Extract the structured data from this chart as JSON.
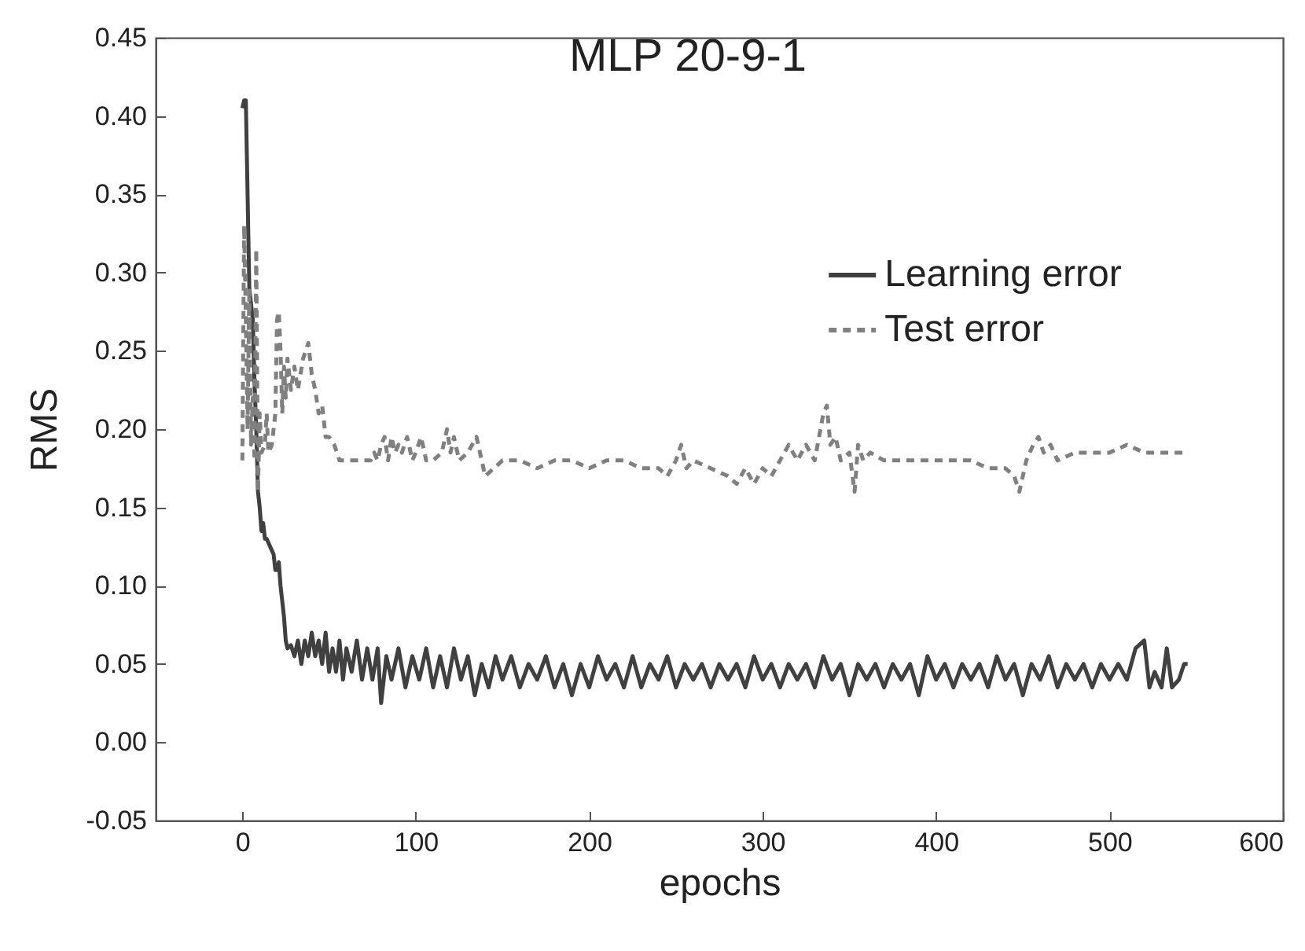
{
  "chart_data": {
    "type": "line",
    "title": "MLP 20-9-1",
    "xlabel": "epochs",
    "ylabel": "RMS",
    "xlim": [
      -50,
      600
    ],
    "xticks": [
      0,
      100,
      200,
      300,
      400,
      500,
      600
    ],
    "ylim": [
      -0.05,
      0.45
    ],
    "yticks": [
      {
        "value": -0.05,
        "label": "-0.05"
      },
      {
        "value": 0,
        "label": "0.00"
      },
      {
        "value": 0.05,
        "label": "0.05"
      },
      {
        "value": 0.1,
        "label": "0.10"
      },
      {
        "value": 0.15,
        "label": "0.15"
      },
      {
        "value": 0.2,
        "label": "0.20"
      },
      {
        "value": 0.25,
        "label": "0.25"
      },
      {
        "value": 0.3,
        "label": "0.30"
      },
      {
        "value": 0.35,
        "label": "0.35"
      },
      {
        "value": 0.4,
        "label": "0.40"
      },
      {
        "value": 0.45,
        "label": "0.45"
      }
    ],
    "grid": false,
    "legend": "top right",
    "marker": "none",
    "series": [
      {
        "name": "Learning error",
        "color": "#404040",
        "line_style": "solid",
        "x": [
          0,
          1,
          2,
          3,
          4,
          5,
          6,
          7,
          8,
          9,
          10,
          11,
          12,
          13,
          14,
          16,
          18,
          19,
          20,
          21,
          22,
          23,
          24,
          25,
          26,
          28,
          30,
          32,
          34,
          36,
          38,
          40,
          42,
          44,
          46,
          48,
          50,
          52,
          54,
          56,
          58,
          60,
          63,
          66,
          69,
          72,
          75,
          78,
          80,
          83,
          86,
          90,
          94,
          98,
          102,
          106,
          110,
          114,
          118,
          122,
          126,
          130,
          134,
          138,
          142,
          146,
          150,
          155,
          160,
          165,
          170,
          175,
          180,
          185,
          190,
          195,
          200,
          205,
          210,
          215,
          220,
          225,
          230,
          235,
          240,
          245,
          250,
          255,
          260,
          265,
          270,
          275,
          280,
          285,
          290,
          295,
          300,
          305,
          310,
          315,
          320,
          325,
          330,
          335,
          340,
          345,
          350,
          355,
          360,
          365,
          370,
          375,
          380,
          385,
          390,
          395,
          400,
          405,
          410,
          415,
          420,
          425,
          430,
          435,
          440,
          445,
          450,
          455,
          460,
          465,
          470,
          475,
          480,
          485,
          490,
          495,
          500,
          505,
          510,
          515,
          520,
          523,
          526,
          530,
          533,
          536,
          540,
          543,
          545
        ],
        "values": [
          0.405,
          0.41,
          0.41,
          0.35,
          0.29,
          0.28,
          0.27,
          0.23,
          0.2,
          0.16,
          0.15,
          0.135,
          0.14,
          0.13,
          0.13,
          0.125,
          0.12,
          0.11,
          0.11,
          0.115,
          0.1,
          0.09,
          0.08,
          0.065,
          0.06,
          0.062,
          0.055,
          0.065,
          0.05,
          0.065,
          0.055,
          0.07,
          0.055,
          0.065,
          0.05,
          0.07,
          0.045,
          0.06,
          0.045,
          0.065,
          0.04,
          0.06,
          0.045,
          0.065,
          0.04,
          0.06,
          0.04,
          0.06,
          0.025,
          0.055,
          0.04,
          0.06,
          0.035,
          0.055,
          0.04,
          0.06,
          0.035,
          0.055,
          0.035,
          0.06,
          0.04,
          0.055,
          0.03,
          0.05,
          0.035,
          0.055,
          0.04,
          0.055,
          0.035,
          0.05,
          0.04,
          0.055,
          0.035,
          0.05,
          0.03,
          0.05,
          0.035,
          0.055,
          0.04,
          0.05,
          0.035,
          0.055,
          0.035,
          0.05,
          0.04,
          0.055,
          0.035,
          0.05,
          0.04,
          0.05,
          0.035,
          0.05,
          0.04,
          0.05,
          0.035,
          0.055,
          0.04,
          0.05,
          0.035,
          0.05,
          0.04,
          0.05,
          0.035,
          0.055,
          0.04,
          0.05,
          0.03,
          0.05,
          0.04,
          0.05,
          0.035,
          0.05,
          0.04,
          0.05,
          0.03,
          0.055,
          0.04,
          0.05,
          0.035,
          0.05,
          0.04,
          0.05,
          0.035,
          0.055,
          0.04,
          0.05,
          0.03,
          0.05,
          0.04,
          0.055,
          0.035,
          0.05,
          0.04,
          0.05,
          0.035,
          0.05,
          0.04,
          0.05,
          0.04,
          0.06,
          0.065,
          0.035,
          0.045,
          0.035,
          0.06,
          0.035,
          0.04,
          0.05,
          0.05
        ]
      },
      {
        "name": "Test error",
        "color": "#808080",
        "line_style": "dashed",
        "x": [
          0,
          1,
          2,
          3,
          4,
          5,
          6,
          7,
          8,
          9,
          10,
          11,
          13,
          14,
          15,
          17,
          19,
          20,
          21,
          22,
          23,
          24,
          25,
          26,
          28,
          30,
          32,
          35,
          38,
          40,
          42,
          44,
          46,
          48,
          50,
          53,
          56,
          60,
          65,
          70,
          74,
          76,
          78,
          80,
          82,
          84,
          86,
          88,
          90,
          92,
          95,
          98,
          100,
          103,
          106,
          110,
          115,
          118,
          120,
          122,
          125,
          130,
          135,
          140,
          145,
          150,
          160,
          170,
          180,
          190,
          200,
          210,
          220,
          230,
          240,
          245,
          250,
          253,
          256,
          260,
          270,
          280,
          285,
          290,
          295,
          300,
          305,
          310,
          315,
          320,
          325,
          330,
          335,
          337,
          339,
          342,
          345,
          350,
          353,
          355,
          358,
          362,
          370,
          380,
          390,
          400,
          410,
          420,
          430,
          440,
          445,
          448,
          452,
          456,
          459,
          462,
          466,
          470,
          480,
          490,
          500,
          510,
          520,
          530,
          545
        ],
        "values": [
          0.18,
          0.33,
          0.27,
          0.2,
          0.29,
          0.19,
          0.22,
          0.18,
          0.315,
          0.16,
          0.21,
          0.185,
          0.19,
          0.21,
          0.185,
          0.19,
          0.21,
          0.27,
          0.275,
          0.25,
          0.21,
          0.24,
          0.22,
          0.245,
          0.225,
          0.24,
          0.225,
          0.245,
          0.255,
          0.235,
          0.225,
          0.21,
          0.215,
          0.195,
          0.195,
          0.19,
          0.18,
          0.18,
          0.18,
          0.18,
          0.18,
          0.185,
          0.18,
          0.19,
          0.195,
          0.18,
          0.195,
          0.185,
          0.19,
          0.185,
          0.195,
          0.18,
          0.185,
          0.195,
          0.18,
          0.18,
          0.185,
          0.2,
          0.185,
          0.195,
          0.18,
          0.185,
          0.195,
          0.17,
          0.175,
          0.18,
          0.18,
          0.175,
          0.18,
          0.18,
          0.175,
          0.18,
          0.18,
          0.175,
          0.175,
          0.17,
          0.18,
          0.19,
          0.175,
          0.18,
          0.175,
          0.17,
          0.165,
          0.175,
          0.165,
          0.175,
          0.17,
          0.18,
          0.19,
          0.18,
          0.19,
          0.18,
          0.21,
          0.215,
          0.19,
          0.195,
          0.18,
          0.185,
          0.16,
          0.19,
          0.18,
          0.185,
          0.18,
          0.18,
          0.18,
          0.18,
          0.18,
          0.18,
          0.175,
          0.175,
          0.17,
          0.16,
          0.18,
          0.19,
          0.195,
          0.185,
          0.19,
          0.18,
          0.185,
          0.185,
          0.185,
          0.19,
          0.185,
          0.185,
          0.185
        ]
      }
    ]
  }
}
